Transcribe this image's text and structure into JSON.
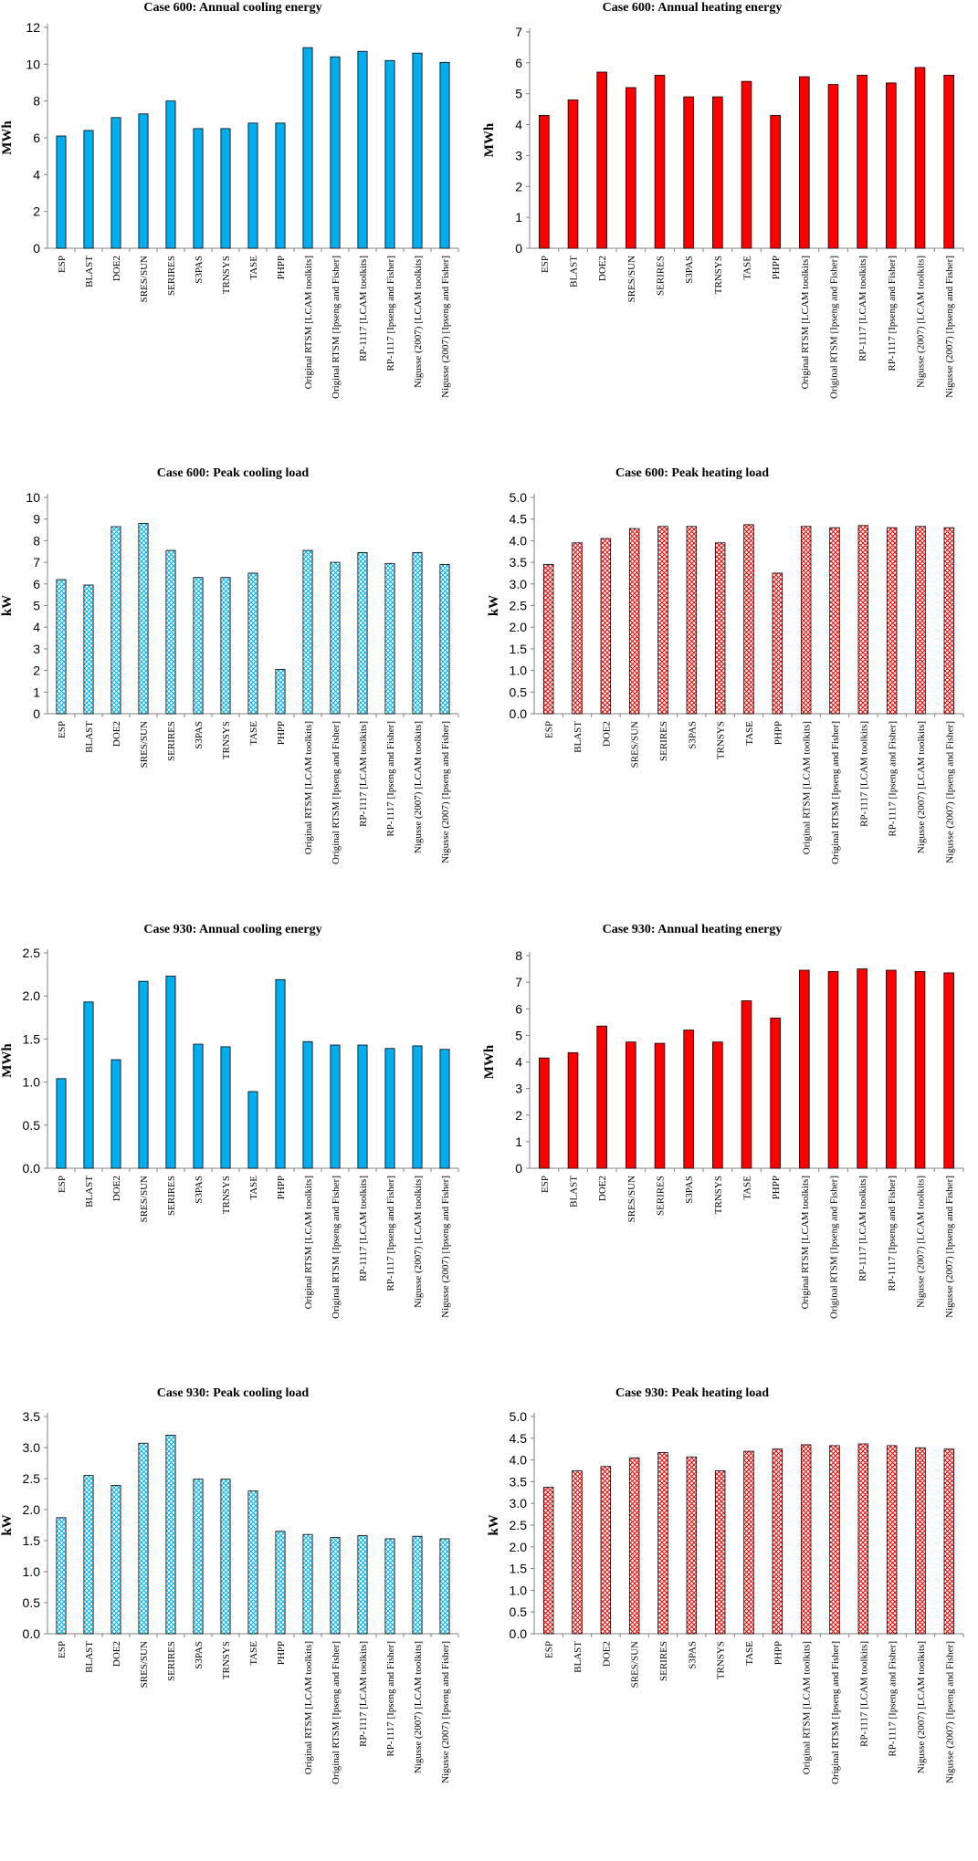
{
  "figure_caption": "",
  "chart_data": [
    {
      "type": "bar",
      "title": "Case 600: Annual cooling energy",
      "xlabel": "",
      "ylabel": "MWh",
      "ylim": [
        0,
        12
      ],
      "ytick_step": 2,
      "ytick_decimals": 0,
      "fill_style": "solid",
      "color": "#00AEEF",
      "categories": [
        "ESP",
        "BLAST",
        "DOE2",
        "SRES/SUN",
        "SERIRES",
        "S3PAS",
        "TRNSYS",
        "TASE",
        "PHPP",
        "Original RTSM [LCAM toolkits]",
        "Original RTSM [Ipseng and Fisher]",
        "RP-1117 [LCAM toolkits]",
        "RP-1117 [Ipseng and Fisher]",
        "Nigusse (2007) [LCAM toolkits]",
        "Nigusse (2007) [Ipseng and Fisher]"
      ],
      "values": [
        6.1,
        6.4,
        7.1,
        7.3,
        8.0,
        6.5,
        6.5,
        6.8,
        6.8,
        10.9,
        10.4,
        10.7,
        10.2,
        10.6,
        10.1
      ]
    },
    {
      "type": "bar",
      "title": "Case 600: Annual heating energy",
      "xlabel": "",
      "ylabel": "MWh",
      "ylim": [
        0,
        7
      ],
      "ytick_step": 1,
      "ytick_decimals": 0,
      "fill_style": "solid",
      "color": "#FF0000",
      "categories": [
        "ESP",
        "BLAST",
        "DOE2",
        "SRES/SUN",
        "SERIRES",
        "S3PAS",
        "TRNSYS",
        "TASE",
        "PHPP",
        "Original RTSM [LCAM toolkits]",
        "Original RTSM [Ipseng and Fisher]",
        "RP-1117 [LCAM toolkits]",
        "RP-1117 [Ipseng and Fisher]",
        "Nigusse (2007) [LCAM toolkits]",
        "Nigusse (2007) [Ipseng and Fisher]"
      ],
      "values": [
        4.3,
        4.8,
        5.7,
        5.2,
        5.6,
        4.9,
        4.9,
        5.4,
        4.3,
        5.55,
        5.3,
        5.6,
        5.35,
        5.85,
        5.6
      ]
    },
    {
      "type": "bar",
      "title": "Case 600: Peak cooling load",
      "xlabel": "",
      "ylabel": "kW",
      "ylim": [
        0,
        10
      ],
      "ytick_step": 1,
      "ytick_decimals": 0,
      "fill_style": "hatch",
      "color": "#00AEEF",
      "categories": [
        "ESP",
        "BLAST",
        "DOE2",
        "SRES/SUN",
        "SERIRES",
        "S3PAS",
        "TRNSYS",
        "TASE",
        "PHPP",
        "Original RTSM [LCAM toolkits]",
        "Original RTSM [Ipseng and Fisher]",
        "RP-1117 [LCAM toolkits]",
        "RP-1117 [Ipseng and Fisher]",
        "Nigusse (2007) [LCAM toolkits]",
        "Nigusse (2007) [Ipseng and Fisher]"
      ],
      "values": [
        6.2,
        5.95,
        8.65,
        8.8,
        7.55,
        6.3,
        6.3,
        6.5,
        2.05,
        7.55,
        7.0,
        7.45,
        6.95,
        7.45,
        6.9
      ]
    },
    {
      "type": "bar",
      "title": "Case 600: Peak heating load",
      "xlabel": "",
      "ylabel": "kW",
      "ylim": [
        0,
        5
      ],
      "ytick_step": 0.5,
      "ytick_decimals": 1,
      "fill_style": "hatch",
      "color": "#FF0000",
      "categories": [
        "ESP",
        "BLAST",
        "DOE2",
        "SRES/SUN",
        "SERIRES",
        "S3PAS",
        "TRNSYS",
        "TASE",
        "PHPP",
        "Original RTSM [LCAM toolkits]",
        "Original RTSM [Ipseng and Fisher]",
        "RP-1117 [LCAM toolkits]",
        "RP-1117 [Ipseng and Fisher]",
        "Nigusse (2007) [LCAM toolkits]",
        "Nigusse (2007) [Ipseng and Fisher]"
      ],
      "values": [
        3.45,
        3.95,
        4.05,
        4.28,
        4.33,
        4.33,
        3.95,
        4.37,
        3.25,
        4.33,
        4.3,
        4.35,
        4.3,
        4.33,
        4.3
      ]
    },
    {
      "type": "bar",
      "title": "Case 930: Annual cooling energy",
      "xlabel": "",
      "ylabel": "MWh",
      "ylim": [
        0,
        2.5
      ],
      "ytick_step": 0.5,
      "ytick_decimals": 1,
      "fill_style": "solid",
      "color": "#00AEEF",
      "categories": [
        "ESP",
        "BLAST",
        "DOE2",
        "SRES/SUN",
        "SERIRES",
        "S3PAS",
        "TRNSYS",
        "TASE",
        "PHPP",
        "Original RTSM [LCAM toolkits]",
        "Original RTSM [Ipseng and Fisher]",
        "RP-1117 [LCAM toolkits]",
        "RP-1117 [Ipseng and Fisher]",
        "Nigusse (2007) [LCAM toolkits]",
        "Nigusse (2007) [Ipseng and Fisher]"
      ],
      "values": [
        1.04,
        1.93,
        1.26,
        2.17,
        2.23,
        1.44,
        1.41,
        0.89,
        2.19,
        1.47,
        1.43,
        1.43,
        1.39,
        1.42,
        1.38
      ]
    },
    {
      "type": "bar",
      "title": "Case 930: Annual heating energy",
      "xlabel": "",
      "ylabel": "MWh",
      "ylim": [
        0,
        8
      ],
      "ytick_step": 1,
      "ytick_decimals": 0,
      "fill_style": "solid",
      "color": "#FF0000",
      "categories": [
        "ESP",
        "BLAST",
        "DOE2",
        "SRES/SUN",
        "SERIRES",
        "S3PAS",
        "TRNSYS",
        "TASE",
        "PHPP",
        "Original RTSM [LCAM toolkits]",
        "Original RTSM [Ipseng and Fisher]",
        "RP-1117 [LCAM toolkits]",
        "RP-1117 [Ipseng and Fisher]",
        "Nigusse (2007) [LCAM toolkits]",
        "Nigusse (2007) [Ipseng and Fisher]"
      ],
      "values": [
        4.15,
        4.35,
        5.35,
        4.75,
        4.7,
        5.2,
        4.75,
        6.3,
        5.65,
        7.45,
        7.4,
        7.5,
        7.45,
        7.4,
        7.35
      ]
    },
    {
      "type": "bar",
      "title": "Case 930: Peak cooling load",
      "xlabel": "",
      "ylabel": "kW",
      "ylim": [
        0,
        3.5
      ],
      "ytick_step": 0.5,
      "ytick_decimals": 1,
      "fill_style": "hatch",
      "color": "#00AEEF",
      "categories": [
        "ESP",
        "BLAST",
        "DOE2",
        "SRES/SUN",
        "SERIRES",
        "S3PAS",
        "TRNSYS",
        "TASE",
        "PHPP",
        "Original RTSM [LCAM toolkits]",
        "Original RTSM [Ipseng and Fisher]",
        "RP-1117 [LCAM toolkits]",
        "RP-1117 [Ipseng and Fisher]",
        "Nigusse (2007) [LCAM toolkits]",
        "Nigusse (2007) [Ipseng and Fisher]"
      ],
      "values": [
        1.87,
        2.55,
        2.39,
        3.07,
        3.2,
        2.49,
        2.49,
        2.3,
        1.65,
        1.6,
        1.55,
        1.58,
        1.53,
        1.57,
        1.53
      ]
    },
    {
      "type": "bar",
      "title": "Case 930: Peak heating load",
      "xlabel": "",
      "ylabel": "kW",
      "ylim": [
        0,
        5
      ],
      "ytick_step": 0.5,
      "ytick_decimals": 1,
      "fill_style": "hatch",
      "color": "#FF0000",
      "categories": [
        "ESP",
        "BLAST",
        "DOE2",
        "SRES/SUN",
        "SERIRES",
        "S3PAS",
        "TRNSYS",
        "TASE",
        "PHPP",
        "Original RTSM [LCAM toolkits]",
        "Original RTSM [Ipseng and Fisher]",
        "RP-1117 [LCAM toolkits]",
        "RP-1117 [Ipseng and Fisher]",
        "Nigusse (2007) [LCAM toolkits]",
        "Nigusse (2007) [Ipseng and Fisher]"
      ],
      "values": [
        3.37,
        3.75,
        3.85,
        4.05,
        4.17,
        4.07,
        3.75,
        4.2,
        4.25,
        4.35,
        4.33,
        4.37,
        4.33,
        4.28,
        4.25
      ]
    }
  ]
}
